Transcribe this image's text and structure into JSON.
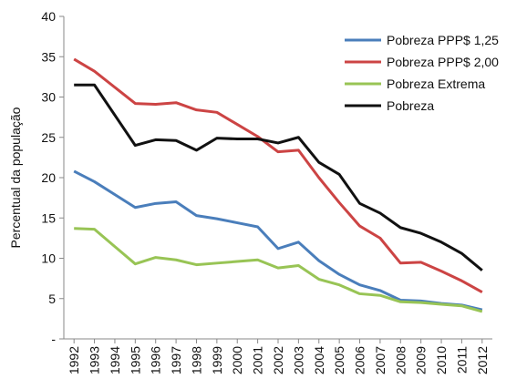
{
  "chart_data": {
    "type": "line",
    "ylabel": "Percentual da população",
    "x": [
      1992,
      1993,
      1995,
      1996,
      1997,
      1998,
      1999,
      2000,
      2001,
      2002,
      2003,
      2004,
      2005,
      2006,
      2007,
      2008,
      2009,
      2010,
      2011,
      2012
    ],
    "xlim": [
      1991.5,
      2012.5
    ],
    "xticks": [
      1992,
      1993,
      1994,
      1995,
      1996,
      1997,
      1998,
      1999,
      2000,
      2001,
      2002,
      2003,
      2004,
      2005,
      2006,
      2007,
      2008,
      2009,
      2010,
      2011,
      2012
    ],
    "ylim": [
      0,
      40
    ],
    "yticks": [
      {
        "value": 0,
        "label": "-"
      },
      5,
      10,
      15,
      20,
      25,
      30,
      35,
      40
    ],
    "legend": "upper right",
    "series": [
      {
        "name": "Pobreza PPP$ 1,25",
        "color": "#4a7ebb",
        "values": [
          20.8,
          19.5,
          16.3,
          16.8,
          17,
          15.3,
          14.9,
          14.4,
          13.9,
          11.2,
          12,
          9.7,
          8,
          6.7,
          6,
          4.8,
          4.7,
          4.4,
          4.2,
          3.6
        ]
      },
      {
        "name": "Pobreza PPP$ 2,00",
        "color": "#cc4444",
        "values": [
          34.7,
          33.2,
          29.2,
          29.1,
          29.3,
          28.4,
          28.1,
          26.6,
          25.1,
          23.2,
          23.4,
          20,
          16.9,
          14,
          12.5,
          9.4,
          9.5,
          8.4,
          7.2,
          5.8
        ]
      },
      {
        "name": "Pobreza Extrema",
        "color": "#98c455",
        "values": [
          13.7,
          13.6,
          9.3,
          10.1,
          9.8,
          9.2,
          9.4,
          9.6,
          9.8,
          8.8,
          9.1,
          7.4,
          6.7,
          5.6,
          5.4,
          4.6,
          4.5,
          4.3,
          4.1,
          3.4
        ]
      },
      {
        "name": "Pobreza",
        "color": "#111111",
        "values": [
          31.5,
          31.5,
          24,
          24.7,
          24.6,
          23.4,
          24.9,
          24.8,
          24.8,
          24.3,
          25,
          21.9,
          20.4,
          16.8,
          15.6,
          13.8,
          13.1,
          12,
          10.6,
          8.5
        ]
      }
    ]
  }
}
